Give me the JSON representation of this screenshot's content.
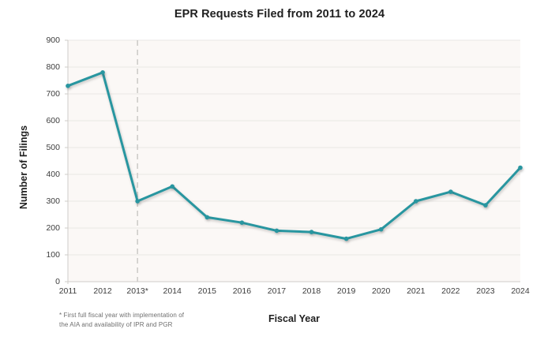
{
  "chart_data": {
    "type": "line",
    "title": "EPR Requests Filed from 2011 to 2024",
    "xlabel": "Fiscal Year",
    "ylabel": "Number of Filings",
    "categories": [
      "2011",
      "2012",
      "2013*",
      "2014",
      "2015",
      "2016",
      "2017",
      "2018",
      "2019",
      "2020",
      "2021",
      "2022",
      "2023",
      "2024"
    ],
    "values": [
      730,
      780,
      300,
      355,
      240,
      220,
      190,
      185,
      160,
      195,
      300,
      335,
      285,
      425
    ],
    "ylim": [
      0,
      900
    ],
    "ytick_step": 100,
    "grid": "horizontal",
    "legend": "none",
    "marker": "circle",
    "line_color": "#2896A0",
    "plot_bg": "#FBF8F6",
    "gridline_color": "#EAE7E4",
    "axis_line_color": "#CFCCC9",
    "annotation_vline": {
      "category": "2013*",
      "style": "dashed",
      "color": "#CBC9C6"
    },
    "footnote_lines": [
      "* First full fiscal year with implementation of",
      "the AIA and availability of IPR and PGR"
    ]
  }
}
